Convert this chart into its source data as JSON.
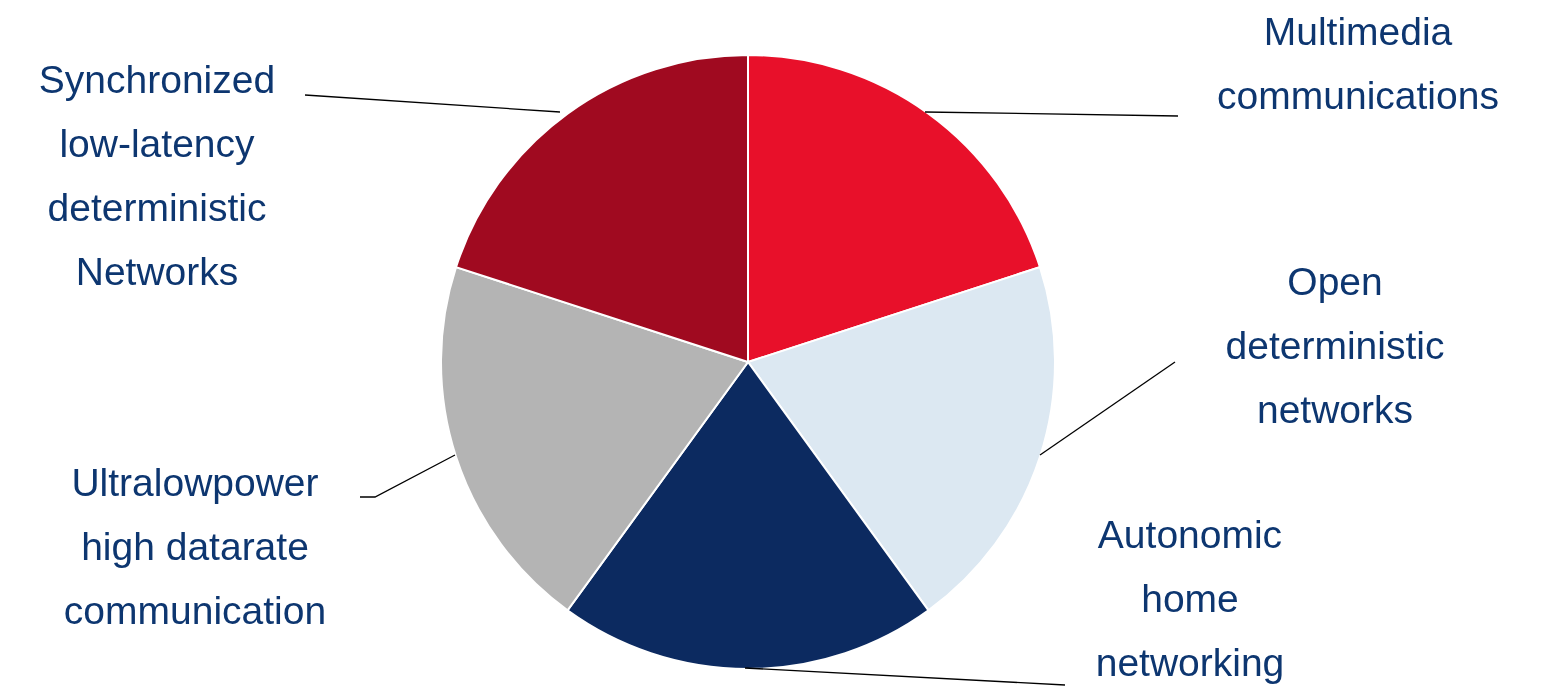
{
  "chart_data": {
    "type": "pie",
    "categories": [
      "Multimedia communications",
      "Open deterministic networks",
      "Autonomic home networking",
      "Ultralowpower high datarate communication",
      "Synchronized low-latency deterministic Networks"
    ],
    "values": [
      20,
      20,
      20,
      20,
      20
    ],
    "colors": [
      "#e8102a",
      "#dce8f2",
      "#0c2a60",
      "#b4b4b4",
      "#a00a20"
    ]
  }
}
